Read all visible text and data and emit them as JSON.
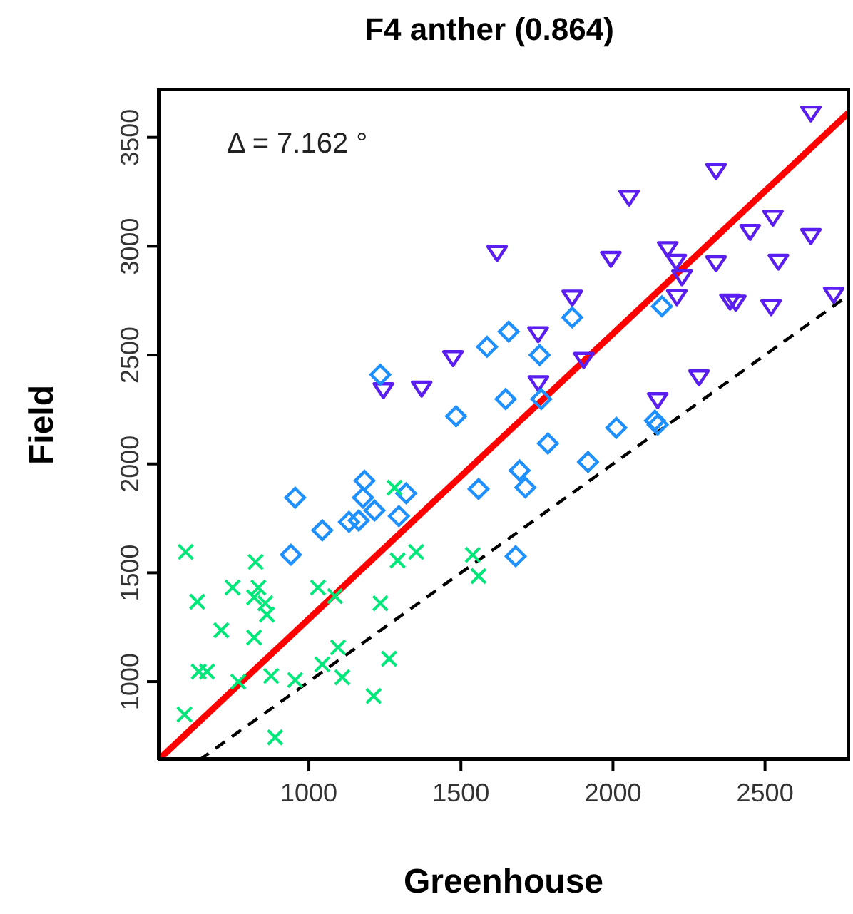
{
  "chart_data": {
    "type": "scatter",
    "title": "F4 anther (0.864)",
    "xlabel": "Greenhouse",
    "ylabel": "Field",
    "annotations": [
      "Δ = 7.162 °"
    ],
    "xlim": [
      505,
      2780
    ],
    "ylim": [
      640,
      3725
    ],
    "xticks": [
      1000,
      1500,
      2000,
      2500
    ],
    "yticks": [
      1000,
      1500,
      2000,
      2500,
      3000,
      3500
    ],
    "grid": false,
    "legend": false,
    "series": [
      {
        "marker": "triangle",
        "color": "#5a1ef0",
        "x": [
          2651,
          2339,
          2053,
          1619,
          2451,
          2526,
          2651,
          1993,
          2180,
          2208,
          2227,
          2339,
          2544,
          2210,
          2385,
          2404,
          2520,
          2726,
          1866,
          1754,
          1474,
          1904,
          1371,
          1245,
          1755,
          2147,
          2283
        ],
        "values": [
          3614,
          3350,
          3227,
          2973,
          3070,
          3135,
          3051,
          2946,
          2991,
          2933,
          2861,
          2926,
          2933,
          2770,
          2750,
          2745,
          2724,
          2781,
          2768,
          2600,
          2490,
          2482,
          2350,
          2343,
          2375,
          2297,
          2402
        ]
      },
      {
        "marker": "diamond",
        "color": "#1e90ff",
        "x": [
          1866,
          1657,
          1586,
          1759,
          2161,
          1235,
          1484,
          1647,
          1764,
          2011,
          2138,
          2147,
          1786,
          1918,
          1693,
          1712,
          1558,
          1680,
          1183,
          1178,
          1320,
          1216,
          1132,
          1164,
          1296,
          955,
          1044,
          941
        ],
        "values": [
          2673,
          2608,
          2538,
          2500,
          2724,
          2410,
          2219,
          2298,
          2298,
          2166,
          2199,
          2180,
          2094,
          2009,
          1970,
          1892,
          1885,
          1576,
          1923,
          1845,
          1865,
          1786,
          1734,
          1740,
          1760,
          1845,
          1695,
          1583
        ]
      },
      {
        "marker": "cross",
        "color": "#00e87a",
        "x": [
          595,
          825,
          749,
          834,
          820,
          857,
          862,
          633,
          712,
          820,
          1030,
          1086,
          1235,
          1292,
          1353,
          1539,
          1558,
          1282,
          638,
          665,
          591,
          768,
          876,
          955,
          1044,
          1096,
          1110,
          1264,
          1213,
          889
        ],
        "values": [
          1596,
          1550,
          1432,
          1432,
          1387,
          1360,
          1308,
          1367,
          1236,
          1203,
          1432,
          1393,
          1360,
          1557,
          1596,
          1583,
          1485,
          1891,
          1046,
          1046,
          849,
          1000,
          1026,
          1007,
          1079,
          1157,
          1020,
          1105,
          934,
          744
        ]
      },
      {
        "type": "line",
        "color": "#ff0000",
        "x": [
          505,
          2780
        ],
        "values": [
          640,
          3620
        ]
      },
      {
        "type": "line",
        "color": "#000000",
        "line_style": "dashed",
        "x": [
          640,
          2780
        ],
        "values": [
          640,
          2780
        ]
      }
    ]
  }
}
